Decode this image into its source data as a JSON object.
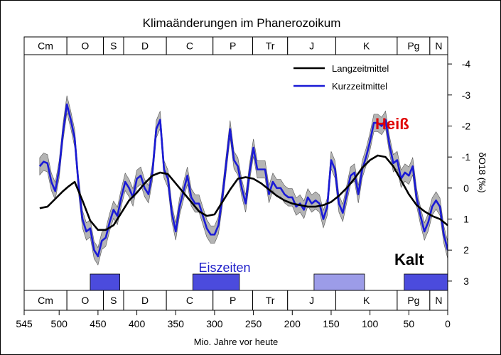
{
  "chart_data": {
    "type": "line",
    "title": "Klimaänderungen im Phanerozoikum",
    "xlabel": "Mio. Jahre vor heute",
    "ylabel": "δO18 (‰)",
    "xlim": [
      545,
      0
    ],
    "ylim": [
      3.3,
      -4.3
    ],
    "y_inverted": true,
    "x_ticks": [
      545,
      500,
      450,
      400,
      350,
      300,
      250,
      200,
      150,
      100,
      50,
      0
    ],
    "y_ticks": [
      3,
      2,
      1,
      0,
      -1,
      -2,
      -3,
      -4
    ],
    "y_tick_labels": [
      "3",
      "2",
      "1",
      "0",
      "-1",
      "-2",
      "-3",
      "-4"
    ],
    "grid": false,
    "legend_position": "top-right",
    "periods": [
      {
        "label": "Cm",
        "start": 545,
        "end": 490
      },
      {
        "label": "O",
        "start": 490,
        "end": 443
      },
      {
        "label": "S",
        "start": 443,
        "end": 417
      },
      {
        "label": "D",
        "start": 417,
        "end": 362
      },
      {
        "label": "C",
        "start": 362,
        "end": 302
      },
      {
        "label": "P",
        "start": 302,
        "end": 251
      },
      {
        "label": "Tr",
        "start": 251,
        "end": 206
      },
      {
        "label": "J",
        "start": 206,
        "end": 144
      },
      {
        "label": "K",
        "start": 144,
        "end": 65
      },
      {
        "label": "Pg",
        "start": 65,
        "end": 23
      },
      {
        "label": "N",
        "start": 23,
        "end": 0
      }
    ],
    "series": [
      {
        "name": "Langzeitmittel",
        "color": "#000000",
        "x": [
          525,
          515,
          505,
          495,
          488,
          480,
          470,
          460,
          450,
          440,
          430,
          420,
          410,
          400,
          390,
          380,
          370,
          360,
          350,
          340,
          330,
          320,
          310,
          300,
          290,
          280,
          270,
          260,
          250,
          240,
          230,
          220,
          210,
          200,
          190,
          180,
          170,
          160,
          150,
          140,
          130,
          120,
          110,
          100,
          90,
          80,
          70,
          60,
          50,
          40,
          30,
          20,
          10,
          0
        ],
        "y": [
          0.65,
          0.6,
          0.35,
          0.1,
          -0.05,
          -0.2,
          0.4,
          1.05,
          1.35,
          1.35,
          1.2,
          0.8,
          0.4,
          0.15,
          -0.15,
          -0.4,
          -0.5,
          -0.45,
          -0.15,
          0.15,
          0.45,
          0.75,
          0.9,
          0.85,
          0.45,
          0.05,
          -0.3,
          -0.35,
          -0.3,
          -0.15,
          0.05,
          0.25,
          0.4,
          0.5,
          0.55,
          0.6,
          0.6,
          0.55,
          0.45,
          0.25,
          0.0,
          -0.3,
          -0.65,
          -0.9,
          -1.05,
          -1.0,
          -0.7,
          -0.25,
          0.2,
          0.55,
          0.75,
          0.9,
          1.0,
          1.2
        ]
      },
      {
        "name": "Kurzzeitmittel",
        "color": "#1a1ad6",
        "x": [
          525,
          520,
          515,
          510,
          505,
          500,
          495,
          490,
          485,
          480,
          475,
          470,
          465,
          460,
          455,
          450,
          445,
          440,
          435,
          430,
          425,
          420,
          415,
          410,
          405,
          400,
          395,
          390,
          385,
          380,
          375,
          370,
          365,
          360,
          355,
          350,
          345,
          340,
          335,
          330,
          325,
          320,
          315,
          310,
          305,
          300,
          295,
          290,
          285,
          280,
          275,
          270,
          265,
          260,
          255,
          250,
          245,
          240,
          235,
          230,
          225,
          220,
          215,
          210,
          205,
          200,
          195,
          190,
          185,
          180,
          175,
          170,
          165,
          160,
          155,
          150,
          145,
          140,
          135,
          130,
          125,
          120,
          115,
          110,
          105,
          100,
          95,
          90,
          85,
          80,
          75,
          70,
          65,
          60,
          55,
          50,
          45,
          40,
          35,
          30,
          25,
          20,
          15,
          10,
          5,
          0
        ],
        "y": [
          -0.7,
          -0.85,
          -0.8,
          -0.2,
          0.1,
          -0.6,
          -1.8,
          -2.7,
          -2.2,
          -1.6,
          -0.1,
          1.0,
          1.4,
          1.3,
          2.0,
          2.2,
          1.7,
          1.6,
          1.1,
          0.7,
          0.9,
          0.3,
          -0.2,
          0.0,
          0.3,
          -0.3,
          -0.4,
          0.0,
          0.2,
          -0.5,
          -1.9,
          -2.2,
          -0.6,
          -0.3,
          0.8,
          1.4,
          0.6,
          0.1,
          -0.4,
          0.3,
          0.5,
          0.5,
          0.9,
          1.3,
          1.5,
          1.5,
          1.2,
          0.3,
          -0.8,
          -1.9,
          -0.9,
          -0.7,
          0.0,
          0.5,
          -0.5,
          -1.3,
          -0.6,
          -0.6,
          -0.6,
          0.2,
          -0.2,
          0.0,
          0.0,
          0.2,
          0.3,
          0.3,
          0.6,
          0.5,
          0.7,
          0.3,
          0.5,
          0.4,
          0.5,
          1.0,
          0.6,
          -0.9,
          -0.6,
          0.5,
          0.8,
          0.2,
          -0.4,
          -0.5,
          0.2,
          -0.6,
          -1.0,
          -1.5,
          -2.1,
          -2.1,
          -2.0,
          -2.2,
          -1.4,
          -0.8,
          -0.9,
          -0.3,
          -0.5,
          -0.4,
          -0.7,
          0.3,
          0.9,
          1.4,
          1.1,
          0.6,
          0.4,
          0.6,
          1.5,
          2.0
        ]
      }
    ],
    "annotations": {
      "hot": "Heiß",
      "cold": "Kalt",
      "ice_ages": "Eiszeiten"
    },
    "ice_age_bars": [
      {
        "start": 460,
        "end": 422,
        "color": "#4b4bdd"
      },
      {
        "start": 328,
        "end": 268,
        "color": "#4b4bdd"
      },
      {
        "start": 172,
        "end": 107,
        "color": "#9c9ce8"
      },
      {
        "start": 56,
        "end": 0,
        "color": "#4b4bdd"
      }
    ]
  }
}
